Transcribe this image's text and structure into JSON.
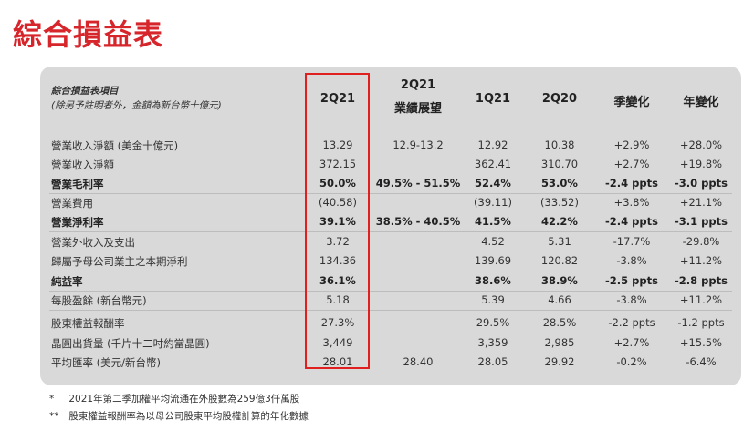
{
  "title": "綜合損益表",
  "table": {
    "header_label_1": "綜合損益表項目",
    "header_label_2": "(除另予註明者外，金額為新台幣十億元)",
    "columns": [
      {
        "line1": "2Q21",
        "line2": ""
      },
      {
        "line1": "2Q21",
        "line2": "業績展望"
      },
      {
        "line1": "1Q21",
        "line2": ""
      },
      {
        "line1": "2Q20",
        "line2": ""
      },
      {
        "line1": "季變化",
        "line2": ""
      },
      {
        "line1": "年變化",
        "line2": ""
      }
    ],
    "rows": [
      {
        "label": "營業收入淨額 (美金十億元)",
        "bold": false,
        "values": [
          "13.29",
          "12.9-13.2",
          "12.92",
          "10.38",
          "+2.9%",
          "+28.0%"
        ]
      },
      {
        "label": "營業收入淨額",
        "bold": false,
        "values": [
          "372.15",
          "",
          "362.41",
          "310.70",
          "+2.7%",
          "+19.8%"
        ]
      },
      {
        "label": "營業毛利率",
        "bold": true,
        "values": [
          "50.0%",
          "49.5% - 51.5%",
          "52.4%",
          "53.0%",
          "-2.4 ppts",
          "-3.0 ppts"
        ]
      },
      {
        "label": "營業費用",
        "bold": false,
        "values": [
          "(40.58)",
          "",
          "(39.11)",
          "(33.52)",
          "+3.8%",
          "+21.1%"
        ]
      },
      {
        "label": "營業淨利率",
        "bold": true,
        "values": [
          "39.1%",
          "38.5% - 40.5%",
          "41.5%",
          "42.2%",
          "-2.4 ppts",
          "-3.1 ppts"
        ]
      },
      {
        "label": "營業外收入及支出",
        "bold": false,
        "values": [
          "3.72",
          "",
          "4.52",
          "5.31",
          "-17.7%",
          "-29.8%"
        ]
      },
      {
        "label": "歸屬予母公司業主之本期淨利",
        "bold": false,
        "values": [
          "134.36",
          "",
          "139.69",
          "120.82",
          "-3.8%",
          "+11.2%"
        ]
      },
      {
        "label": "純益率",
        "bold": true,
        "values": [
          "36.1%",
          "",
          "38.6%",
          "38.9%",
          "-2.5 ppts",
          "-2.8 ppts"
        ]
      },
      {
        "label": "每股盈餘 (新台幣元)",
        "bold": false,
        "values": [
          "5.18",
          "",
          "5.39",
          "4.66",
          "-3.8%",
          "+11.2%"
        ]
      },
      {
        "label": "股東權益報酬率",
        "bold": false,
        "values": [
          "27.3%",
          "",
          "29.5%",
          "28.5%",
          "-2.2 ppts",
          "-1.2 ppts"
        ]
      },
      {
        "label": "晶圓出貨量 (千片十二吋約當晶圓)",
        "bold": false,
        "values": [
          "3,449",
          "",
          "3,359",
          "2,985",
          "+2.7%",
          "+15.5%"
        ]
      },
      {
        "label": "平均匯率 (美元/新台幣)",
        "bold": false,
        "values": [
          "28.01",
          "28.40",
          "28.05",
          "29.92",
          "-0.2%",
          "-6.4%"
        ]
      }
    ]
  },
  "footnotes": [
    {
      "mark": "*",
      "text": "2021年第二季加權平均流通在外股數為259億3仟萬股"
    },
    {
      "mark": "**",
      "text": "股東權益報酬率為以母公司股東平均股權計算的年化數據"
    }
  ],
  "colors": {
    "title": "#d6262c",
    "highlight_border": "#e0201f",
    "panel_bg": "#d9d9d9"
  }
}
